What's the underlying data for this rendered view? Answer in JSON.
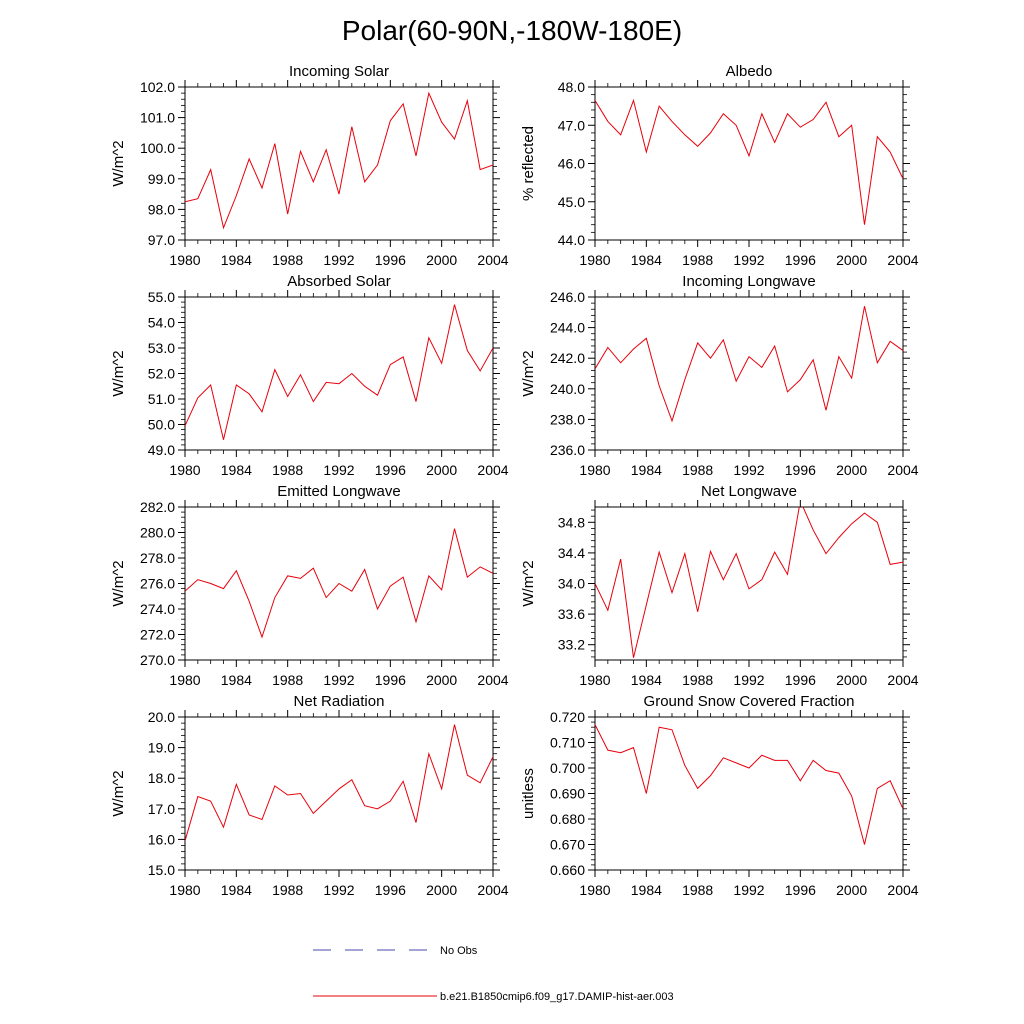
{
  "title": "Polar(60-90N,-180W-180E)",
  "series_color": "#e8000b",
  "obs_color": "#4a4aaa",
  "legend": {
    "obs_label": "No Obs",
    "model_label": "b.e21.B1850cmip6.f09_g17.DAMIP-hist-aer.003"
  },
  "chart_data": [
    {
      "type": "line",
      "title": "Incoming Solar",
      "xlabel": "",
      "ylabel": "W/m^2",
      "xlim": [
        1980,
        2004
      ],
      "ylim": [
        97,
        102
      ],
      "xticks": [
        1980,
        1984,
        1988,
        1992,
        1996,
        2000,
        2004
      ],
      "yticks": [
        97,
        98,
        99,
        100,
        101,
        102
      ],
      "ytick_labels": [
        "97.0",
        "98.0",
        "99.0",
        "100.0",
        "101.0",
        "102.0"
      ],
      "x": [
        1980,
        1981,
        1982,
        1983,
        1984,
        1985,
        1986,
        1987,
        1988,
        1989,
        1990,
        1991,
        1992,
        1993,
        1994,
        1995,
        1996,
        1997,
        1998,
        1999,
        2000,
        2001,
        2002,
        2003,
        2004
      ],
      "y": [
        98.25,
        98.35,
        99.3,
        97.4,
        98.45,
        99.65,
        98.7,
        100.15,
        97.85,
        99.9,
        98.9,
        99.95,
        98.5,
        100.7,
        98.9,
        99.45,
        100.9,
        101.45,
        99.75,
        101.8,
        100.85,
        100.3,
        101.55,
        99.3,
        99.45
      ]
    },
    {
      "type": "line",
      "title": "Albedo",
      "xlabel": "",
      "ylabel": "% reflected",
      "xlim": [
        1980,
        2004
      ],
      "ylim": [
        44,
        48
      ],
      "xticks": [
        1980,
        1984,
        1988,
        1992,
        1996,
        2000,
        2004
      ],
      "yticks": [
        44,
        45,
        46,
        47,
        48
      ],
      "ytick_labels": [
        "44.0",
        "45.0",
        "46.0",
        "47.0",
        "48.0"
      ],
      "x": [
        1980,
        1981,
        1982,
        1983,
        1984,
        1985,
        1986,
        1987,
        1988,
        1989,
        1990,
        1991,
        1992,
        1993,
        1994,
        1995,
        1996,
        1997,
        1998,
        1999,
        2000,
        2001,
        2002,
        2003,
        2004
      ],
      "y": [
        47.65,
        47.1,
        46.75,
        47.65,
        46.3,
        47.5,
        47.1,
        46.75,
        46.45,
        46.8,
        47.3,
        47.0,
        46.2,
        47.3,
        46.55,
        47.3,
        46.95,
        47.15,
        47.6,
        46.7,
        47.0,
        44.4,
        46.7,
        46.3,
        45.6
      ]
    },
    {
      "type": "line",
      "title": "Absorbed Solar",
      "xlabel": "",
      "ylabel": "W/m^2",
      "xlim": [
        1980,
        2004
      ],
      "ylim": [
        49,
        55
      ],
      "xticks": [
        1980,
        1984,
        1988,
        1992,
        1996,
        2000,
        2004
      ],
      "yticks": [
        49,
        50,
        51,
        52,
        53,
        54,
        55
      ],
      "ytick_labels": [
        "49.0",
        "50.0",
        "51.0",
        "52.0",
        "53.0",
        "54.0",
        "55.0"
      ],
      "x": [
        1980,
        1981,
        1982,
        1983,
        1984,
        1985,
        1986,
        1987,
        1988,
        1989,
        1990,
        1991,
        1992,
        1993,
        1994,
        1995,
        1996,
        1997,
        1998,
        1999,
        2000,
        2001,
        2002,
        2003,
        2004
      ],
      "y": [
        49.95,
        51.05,
        51.55,
        49.4,
        51.55,
        51.2,
        50.5,
        52.15,
        51.1,
        51.95,
        50.9,
        51.65,
        51.6,
        52.0,
        51.5,
        51.15,
        52.35,
        52.65,
        50.9,
        53.4,
        52.4,
        54.7,
        52.9,
        52.1,
        53.0
      ]
    },
    {
      "type": "line",
      "title": "Incoming Longwave",
      "xlabel": "",
      "ylabel": "W/m^2",
      "xlim": [
        1980,
        2004
      ],
      "ylim": [
        236,
        246
      ],
      "xticks": [
        1980,
        1984,
        1988,
        1992,
        1996,
        2000,
        2004
      ],
      "yticks": [
        236,
        238,
        240,
        242,
        244,
        246
      ],
      "ytick_labels": [
        "236.0",
        "238.0",
        "240.0",
        "242.0",
        "244.0",
        "246.0"
      ],
      "x": [
        1980,
        1981,
        1982,
        1983,
        1984,
        1985,
        1986,
        1987,
        1988,
        1989,
        1990,
        1991,
        1992,
        1993,
        1994,
        1995,
        1996,
        1997,
        1998,
        1999,
        2000,
        2001,
        2002,
        2003,
        2004
      ],
      "y": [
        241.3,
        242.7,
        241.7,
        242.6,
        243.3,
        240.2,
        237.9,
        240.6,
        243.0,
        242.0,
        243.2,
        240.5,
        242.1,
        241.4,
        242.8,
        239.8,
        240.6,
        241.9,
        238.6,
        242.1,
        240.7,
        245.4,
        241.7,
        243.1,
        242.5
      ]
    },
    {
      "type": "line",
      "title": "Emitted Longwave",
      "xlabel": "",
      "ylabel": "W/m^2",
      "xlim": [
        1980,
        2004
      ],
      "ylim": [
        270,
        282
      ],
      "xticks": [
        1980,
        1984,
        1988,
        1992,
        1996,
        2000,
        2004
      ],
      "yticks": [
        270,
        272,
        274,
        276,
        278,
        280,
        282
      ],
      "ytick_labels": [
        "270.0",
        "272.0",
        "274.0",
        "276.0",
        "278.0",
        "280.0",
        "282.0"
      ],
      "x": [
        1980,
        1981,
        1982,
        1983,
        1984,
        1985,
        1986,
        1987,
        1988,
        1989,
        1990,
        1991,
        1992,
        1993,
        1994,
        1995,
        1996,
        1997,
        1998,
        1999,
        2000,
        2001,
        2002,
        2003,
        2004
      ],
      "y": [
        275.4,
        276.3,
        276.0,
        275.6,
        277.0,
        274.6,
        271.8,
        274.9,
        276.6,
        276.4,
        277.2,
        274.9,
        276.0,
        275.4,
        277.1,
        274.0,
        275.8,
        276.5,
        273.0,
        276.6,
        275.5,
        280.3,
        276.5,
        277.3,
        276.8
      ]
    },
    {
      "type": "line",
      "title": "Net Longwave",
      "xlabel": "",
      "ylabel": "W/m^2",
      "xlim": [
        1980,
        2004
      ],
      "ylim": [
        33.0,
        35.0
      ],
      "xticks": [
        1980,
        1984,
        1988,
        1992,
        1996,
        2000,
        2004
      ],
      "yticks": [
        33.2,
        33.6,
        34.0,
        34.4,
        34.8
      ],
      "ytick_labels": [
        "33.2",
        "33.6",
        "34.0",
        "34.4",
        "34.8"
      ],
      "x": [
        1980,
        1981,
        1982,
        1983,
        1984,
        1985,
        1986,
        1987,
        1988,
        1989,
        1990,
        1991,
        1992,
        1993,
        1994,
        1995,
        1996,
        1997,
        1998,
        1999,
        2000,
        2001,
        2002,
        2003,
        2004
      ],
      "y": [
        34.0,
        33.65,
        34.32,
        33.03,
        33.72,
        34.41,
        33.88,
        34.39,
        33.63,
        34.42,
        34.05,
        34.39,
        33.93,
        34.05,
        34.41,
        34.12,
        35.08,
        34.7,
        34.39,
        34.6,
        34.78,
        34.92,
        34.8,
        34.25,
        34.28
      ]
    },
    {
      "type": "line",
      "title": "Net Radiation",
      "xlabel": "",
      "ylabel": "W/m^2",
      "xlim": [
        1980,
        2004
      ],
      "ylim": [
        15,
        20
      ],
      "xticks": [
        1980,
        1984,
        1988,
        1992,
        1996,
        2000,
        2004
      ],
      "yticks": [
        15,
        16,
        17,
        18,
        19,
        20
      ],
      "ytick_labels": [
        "15.0",
        "16.0",
        "17.0",
        "18.0",
        "19.0",
        "20.0"
      ],
      "x": [
        1980,
        1981,
        1982,
        1983,
        1984,
        1985,
        1986,
        1987,
        1988,
        1989,
        1990,
        1991,
        1992,
        1993,
        1994,
        1995,
        1996,
        1997,
        1998,
        1999,
        2000,
        2001,
        2002,
        2003,
        2004
      ],
      "y": [
        15.95,
        17.4,
        17.25,
        16.4,
        17.8,
        16.8,
        16.65,
        17.75,
        17.45,
        17.5,
        16.85,
        17.25,
        17.65,
        17.95,
        17.1,
        17.0,
        17.25,
        17.9,
        16.55,
        18.8,
        17.65,
        19.75,
        18.1,
        17.85,
        18.7
      ]
    },
    {
      "type": "line",
      "title": "Ground Snow Covered Fraction",
      "xlabel": "",
      "ylabel": "unitless",
      "xlim": [
        1980,
        2004
      ],
      "ylim": [
        0.66,
        0.72
      ],
      "xticks": [
        1980,
        1984,
        1988,
        1992,
        1996,
        2000,
        2004
      ],
      "yticks": [
        0.66,
        0.67,
        0.68,
        0.69,
        0.7,
        0.71,
        0.72
      ],
      "ytick_labels": [
        "0.660",
        "0.670",
        "0.680",
        "0.690",
        "0.700",
        "0.710",
        "0.720"
      ],
      "x": [
        1980,
        1981,
        1982,
        1983,
        1984,
        1985,
        1986,
        1987,
        1988,
        1989,
        1990,
        1991,
        1992,
        1993,
        1994,
        1995,
        1996,
        1997,
        1998,
        1999,
        2000,
        2001,
        2002,
        2003,
        2004
      ],
      "y": [
        0.717,
        0.707,
        0.706,
        0.708,
        0.69,
        0.716,
        0.715,
        0.701,
        0.692,
        0.697,
        0.704,
        0.702,
        0.7,
        0.705,
        0.703,
        0.703,
        0.695,
        0.703,
        0.699,
        0.698,
        0.689,
        0.67,
        0.692,
        0.695,
        0.684
      ]
    }
  ]
}
